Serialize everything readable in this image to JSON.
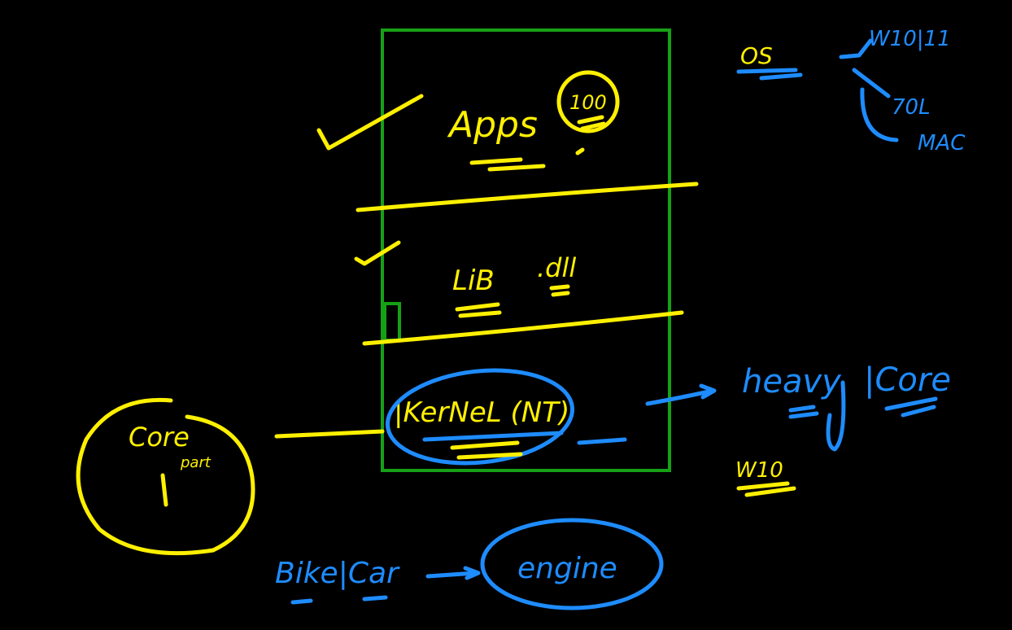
{
  "colors": {
    "background": "#000000",
    "yellow_ink": "#FFF000",
    "blue_ink": "#1E8CFF",
    "green_box": "#16A016"
  },
  "stack": {
    "apps": "Apps",
    "apps_note": "100",
    "lib": "LiB",
    "lib_ext": ".dll",
    "kernel": "|KerNeL (NT)"
  },
  "os": {
    "label": "OS",
    "variants": [
      "W10|11",
      "70L",
      "MAC"
    ]
  },
  "kernel_notes": {
    "heavy": "heavy",
    "core": "|Core",
    "w10": "W10"
  },
  "core_part": {
    "line1": "Core",
    "line2": "part"
  },
  "analogy": {
    "vehicle": "Bike|Car",
    "engine": "engine"
  },
  "icons": {
    "check_apps": "check-mark-icon",
    "check_lib": "check-mark-icon",
    "arrow": "arrow-right-icon"
  }
}
